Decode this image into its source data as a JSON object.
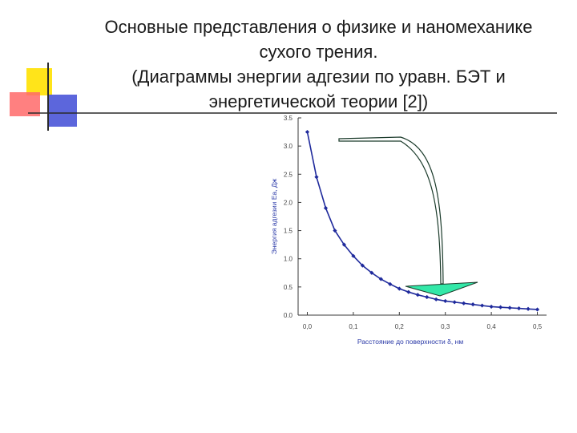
{
  "slide": {
    "title_lines": [
      "Основные представления о физике и наномеханике",
      "сухого трения.",
      "(Диаграммы энергии адгезии по уравн. БЭТ и",
      "энергетической теории [2])"
    ]
  },
  "chart_data": {
    "type": "line",
    "title": "",
    "xlabel": "Расстояние до поверхности δ, нм",
    "ylabel": "Энергия адгезии Ea, Дж",
    "xlim": [
      -0.02,
      0.52
    ],
    "ylim": [
      0.0,
      3.5
    ],
    "x_ticks": [
      "0,0",
      "0,1",
      "0,2",
      "0,3",
      "0,4",
      "0,5"
    ],
    "y_ticks": [
      "0.0",
      "0.5",
      "1.0",
      "1.5",
      "2.0",
      "2.5",
      "3.0",
      "3.5"
    ],
    "grid": false,
    "series": [
      {
        "color": "#1f2a9c",
        "marker": "diamond",
        "x": [
          0.0,
          0.02,
          0.04,
          0.06,
          0.08,
          0.1,
          0.12,
          0.14,
          0.16,
          0.18,
          0.2,
          0.22,
          0.24,
          0.26,
          0.28,
          0.3,
          0.32,
          0.34,
          0.36,
          0.38,
          0.4,
          0.42,
          0.44,
          0.46,
          0.48,
          0.5
        ],
        "y": [
          3.25,
          2.45,
          1.9,
          1.5,
          1.25,
          1.05,
          0.88,
          0.75,
          0.64,
          0.55,
          0.47,
          0.41,
          0.36,
          0.32,
          0.28,
          0.25,
          0.23,
          0.21,
          0.19,
          0.17,
          0.15,
          0.14,
          0.13,
          0.12,
          0.11,
          0.1
        ]
      }
    ],
    "annotation": {
      "type": "arrow",
      "fill": "#33e8a8",
      "stroke": "#1a3a2a"
    }
  }
}
